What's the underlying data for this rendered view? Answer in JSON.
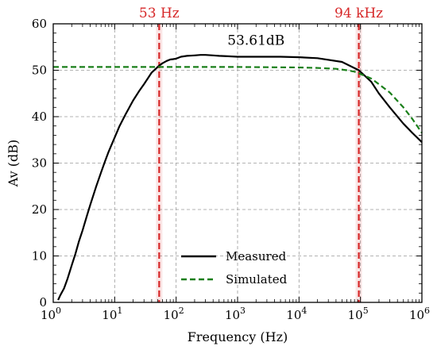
{
  "chart_data": {
    "type": "line",
    "xlabel": "Frequency (Hz)",
    "ylabel": "Av (dB)",
    "x_scale": "log",
    "xlim": [
      1,
      1000000
    ],
    "ylim": [
      0,
      60
    ],
    "x_ticks": [
      {
        "value": 1,
        "base": "10",
        "exp": "0"
      },
      {
        "value": 10,
        "base": "10",
        "exp": "1"
      },
      {
        "value": 100,
        "base": "10",
        "exp": "2"
      },
      {
        "value": 1000,
        "base": "10",
        "exp": "3"
      },
      {
        "value": 10000,
        "base": "10",
        "exp": "4"
      },
      {
        "value": 100000,
        "base": "10",
        "exp": "5"
      },
      {
        "value": 1000000,
        "base": "10",
        "exp": "6"
      }
    ],
    "y_ticks": [
      {
        "value": 0,
        "label": "0"
      },
      {
        "value": 10,
        "label": "10"
      },
      {
        "value": 20,
        "label": "20"
      },
      {
        "value": 30,
        "label": "30"
      },
      {
        "value": 40,
        "label": "40"
      },
      {
        "value": 50,
        "label": "50"
      },
      {
        "value": 60,
        "label": "60"
      }
    ],
    "grid": true,
    "legend_position": "bottom-center",
    "series": [
      {
        "name": "Measured",
        "color": "#000000",
        "style": "solid",
        "x": [
          1.2,
          1.3,
          1.5,
          1.7,
          2.0,
          2.3,
          2.6,
          3.0,
          3.5,
          4.0,
          5.0,
          6.0,
          7.0,
          8.0,
          10,
          12,
          15,
          20,
          25,
          30,
          40,
          53,
          60,
          70,
          80,
          90,
          100,
          120,
          150,
          200,
          250,
          300,
          400,
          500,
          700,
          1000,
          2000,
          5000,
          10000,
          20000,
          50000,
          94000,
          150000,
          200000,
          300000,
          500000,
          700000,
          1000000
        ],
        "y": [
          0.5,
          1.5,
          3.0,
          5.0,
          8.0,
          10.5,
          13.0,
          15.5,
          18.5,
          21.0,
          25.0,
          28.0,
          30.5,
          32.5,
          35.5,
          38.0,
          40.5,
          43.5,
          45.5,
          47.0,
          49.5,
          51.0,
          51.5,
          52.0,
          52.3,
          52.4,
          52.5,
          52.9,
          53.1,
          53.2,
          53.3,
          53.3,
          53.2,
          53.1,
          53.0,
          52.9,
          52.9,
          52.9,
          52.8,
          52.6,
          51.8,
          50.0,
          47.5,
          45.0,
          42.0,
          38.5,
          36.5,
          34.5
        ]
      },
      {
        "name": "Simulated",
        "color": "#1a7f1a",
        "style": "dashed",
        "x": [
          1,
          10,
          100,
          1000,
          10000,
          20000,
          40000,
          60000,
          80000,
          100000,
          150000,
          200000,
          300000,
          500000,
          700000,
          1000000
        ],
        "y": [
          50.7,
          50.7,
          50.7,
          50.7,
          50.6,
          50.5,
          50.3,
          50.0,
          49.7,
          49.2,
          48.2,
          47.0,
          45.2,
          42.0,
          39.5,
          36.5
        ]
      }
    ],
    "markers": [
      {
        "x": 53,
        "label": "53 Hz",
        "color": "#d62728"
      },
      {
        "x": 94000,
        "label": "94 kHz",
        "color": "#d62728"
      }
    ],
    "annotations": [
      {
        "text": "53.61dB",
        "x": 2000,
        "y": 55.5
      }
    ]
  }
}
